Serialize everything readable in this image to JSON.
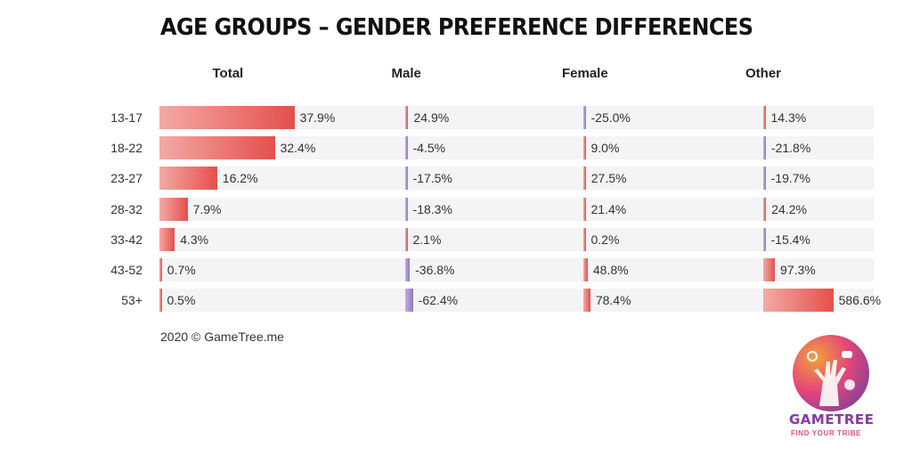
{
  "chart_data": {
    "type": "bar",
    "title": "AGE GROUPS – GENDER PREFERENCE DIFFERENCES",
    "categories": [
      "13-17",
      "18-22",
      "23-27",
      "28-32",
      "33-42",
      "43-52",
      "53+"
    ],
    "series": [
      {
        "name": "Total",
        "values": [
          37.9,
          32.4,
          16.2,
          7.9,
          4.3,
          0.7,
          0.5
        ]
      },
      {
        "name": "Male",
        "values": [
          24.9,
          -4.5,
          -17.5,
          -18.3,
          2.1,
          -36.8,
          -62.4
        ]
      },
      {
        "name": "Female",
        "values": [
          -25.0,
          9.0,
          27.5,
          21.4,
          0.2,
          48.8,
          78.4
        ]
      },
      {
        "name": "Other",
        "values": [
          14.3,
          -21.8,
          -19.7,
          24.2,
          -15.4,
          97.3,
          586.6
        ]
      }
    ],
    "value_suffix": "%"
  },
  "footer": "2020 © GameTree.me",
  "logo": {
    "name": "GAMETREE",
    "tagline": "FIND YOUR TRIBE"
  },
  "colors": {
    "positive": "#e64f4a",
    "negative": "#9176c6"
  }
}
